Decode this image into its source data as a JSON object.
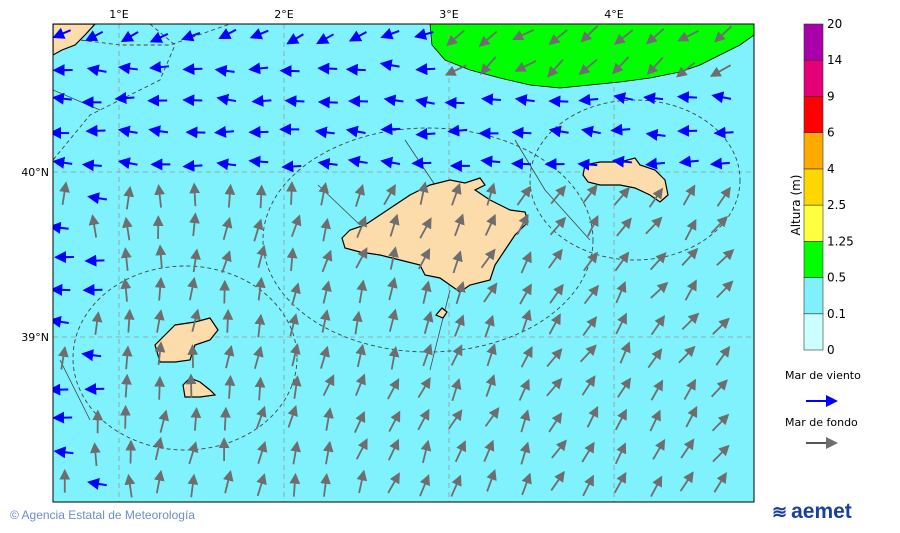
{
  "map": {
    "lon_labels": [
      "1°E",
      "2°E",
      "3°E",
      "4°E"
    ],
    "lat_labels": [
      "40°N",
      "39°N"
    ],
    "colors": {
      "sea_low": "#7ff2fd",
      "sea_mid": "#00ff00",
      "land": "#fcdcaa",
      "wind_sea_arrow": "#0000ff",
      "swell_arrow": "#666666"
    }
  },
  "colorbar": {
    "title": "Altura (m)",
    "ticks": [
      "0",
      "0.1",
      "0.5",
      "1.25",
      "2.5",
      "4",
      "6",
      "9",
      "14",
      "20"
    ],
    "colors": [
      "#ccffff",
      "#80f0fc",
      "#00ff00",
      "#ffff40",
      "#ffd700",
      "#ffaa00",
      "#ff0000",
      "#e5007a",
      "#aa00aa"
    ]
  },
  "legend": {
    "wind_sea": "Mar de viento",
    "swell": "Mar de fondo"
  },
  "footer": {
    "copyright": "© Agencia Estatal de Meteorología",
    "logo": "aemet"
  }
}
